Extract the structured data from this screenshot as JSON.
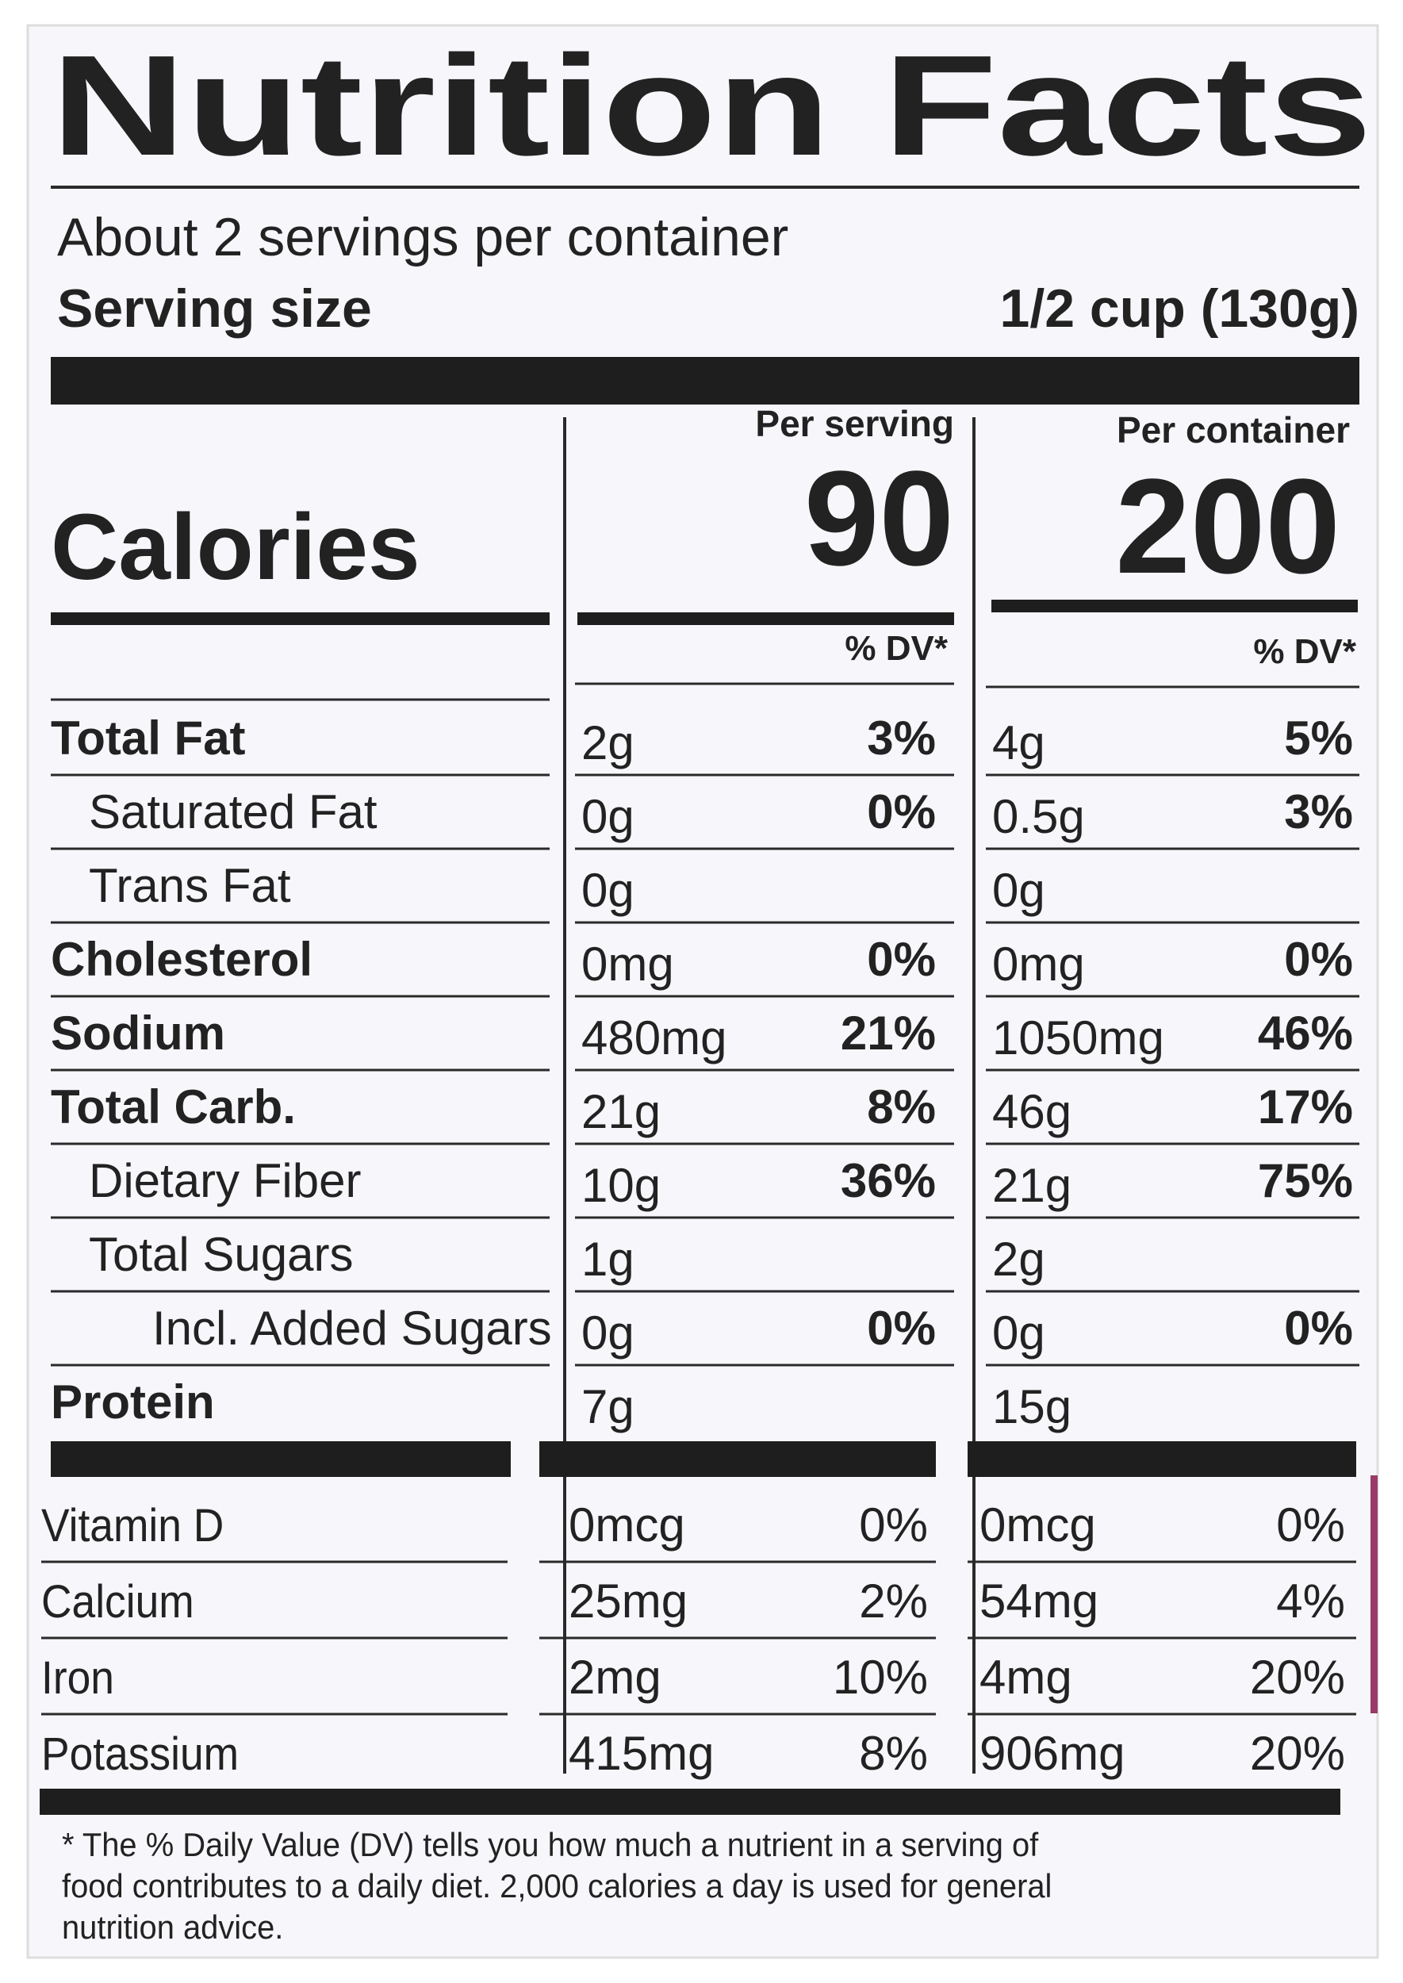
{
  "title": "Nutrition Facts",
  "servings": "About 2 servings per container",
  "serving_size": {
    "label": "Serving size",
    "value": "1/2 cup (130g)"
  },
  "columns": [
    "Per serving",
    "Per container"
  ],
  "calories": {
    "label": "Calories",
    "values": [
      90,
      200
    ]
  },
  "dv_header": [
    "% DV*",
    "% DV*"
  ],
  "nutrients": [
    {
      "name": "Total Fat",
      "bold": true,
      "indent": 0,
      "serving": [
        "2g",
        "3%"
      ],
      "container": [
        "4g",
        "5%"
      ]
    },
    {
      "name": "Saturated Fat",
      "bold": false,
      "indent": 1,
      "serving": [
        "0g",
        "0%"
      ],
      "container": [
        "0.5g",
        "3%"
      ]
    },
    {
      "name": "Trans Fat",
      "bold": false,
      "indent": 1,
      "serving": [
        "0g",
        null
      ],
      "container": [
        "0g",
        null
      ]
    },
    {
      "name": "Cholesterol",
      "bold": true,
      "indent": 0,
      "serving": [
        "0mg",
        "0%"
      ],
      "container": [
        "0mg",
        "0%"
      ]
    },
    {
      "name": "Sodium",
      "bold": true,
      "indent": 0,
      "serving": [
        "480mg",
        "21%"
      ],
      "container": [
        "1050mg",
        "46%"
      ]
    },
    {
      "name": "Total Carb.",
      "bold": true,
      "indent": 0,
      "serving": [
        "21g",
        "8%"
      ],
      "container": [
        "46g",
        "17%"
      ]
    },
    {
      "name": "Dietary Fiber",
      "bold": false,
      "indent": 1,
      "serving": [
        "10g",
        "36%"
      ],
      "container": [
        "21g",
        "75%"
      ]
    },
    {
      "name": "Total Sugars",
      "bold": false,
      "indent": 1,
      "serving": [
        "1g",
        null
      ],
      "container": [
        "2g",
        null
      ]
    },
    {
      "name": "Incl. Added Sugars",
      "bold": false,
      "indent": 2,
      "serving": [
        "0g",
        "0%"
      ],
      "container": [
        "0g",
        "0%"
      ]
    },
    {
      "name": "Protein",
      "bold": true,
      "indent": 0,
      "serving": [
        "7g",
        null
      ],
      "container": [
        "15g",
        null
      ]
    }
  ],
  "vitamins": [
    {
      "name": "Vitamin D",
      "serving": [
        "0mcg",
        "0%"
      ],
      "container": [
        "0mcg",
        "0%"
      ]
    },
    {
      "name": "Calcium",
      "serving": [
        "25mg",
        "2%"
      ],
      "container": [
        "54mg",
        "4%"
      ]
    },
    {
      "name": "Iron",
      "serving": [
        "2mg",
        "10%"
      ],
      "container": [
        "4mg",
        "20%"
      ]
    },
    {
      "name": "Potassium",
      "serving": [
        "415mg",
        "8%"
      ],
      "container": [
        "906mg",
        "20%"
      ]
    }
  ],
  "footnote": [
    "* The % Daily Value (DV) tells you how much a nutrient in a serving of",
    "food contributes to a daily diet. 2,000 calories a day is used for general",
    "nutrition advice."
  ]
}
